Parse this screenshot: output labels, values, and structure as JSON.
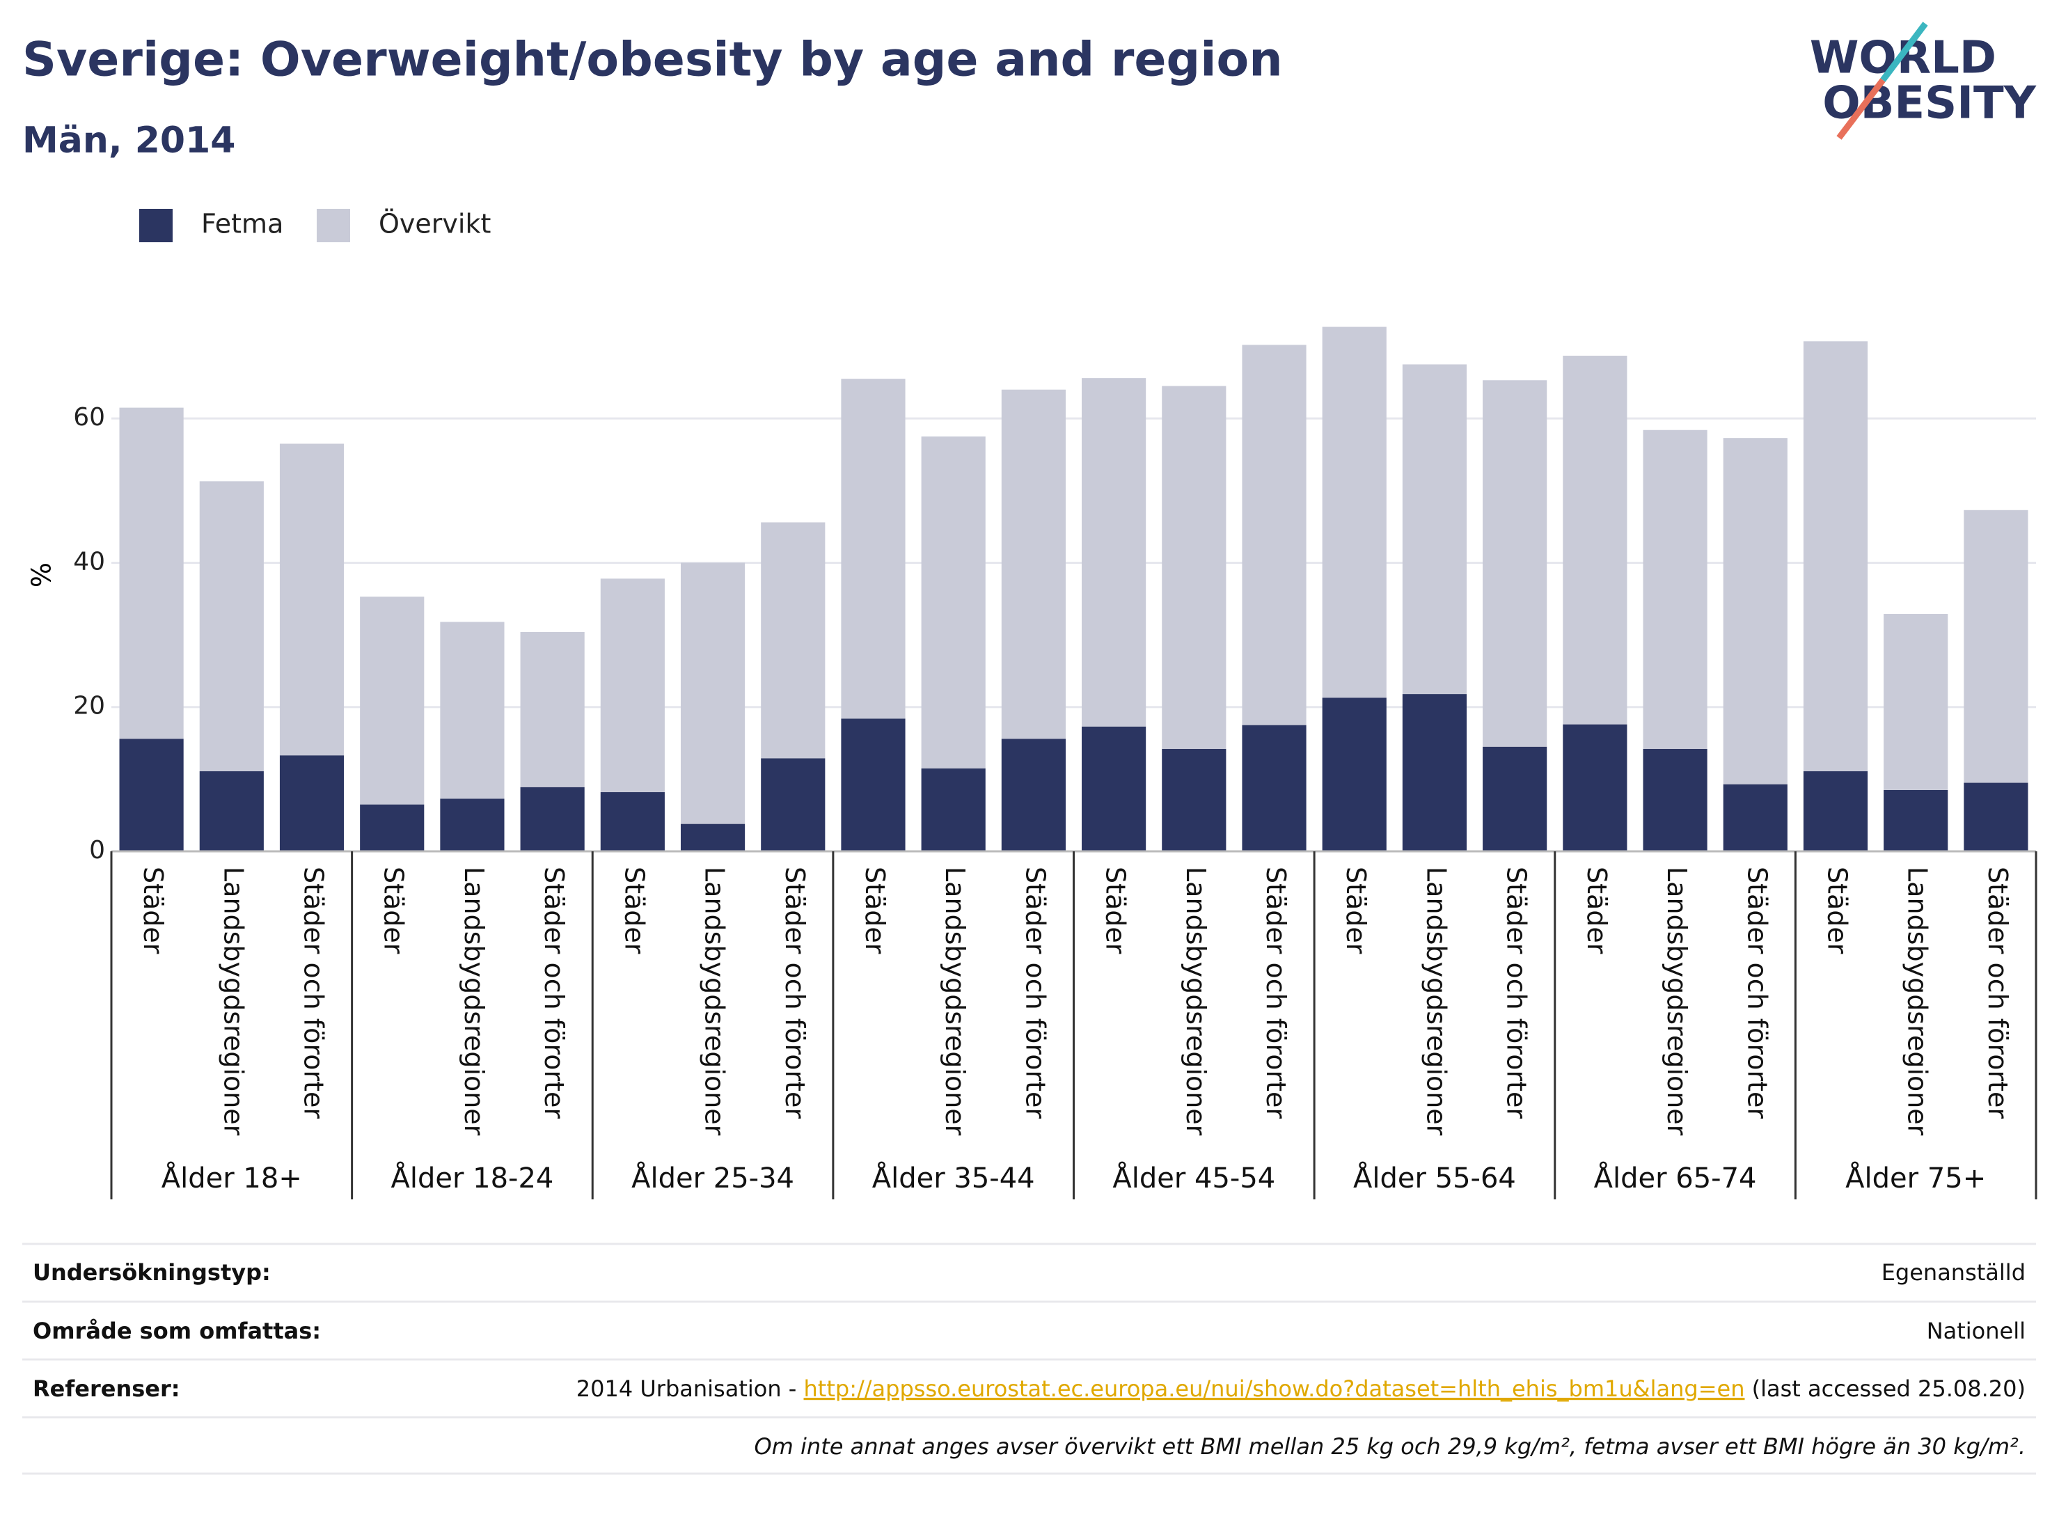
{
  "chart_data": {
    "type": "stacked_bar",
    "title": "Sverige: Overweight/obesity by age and region",
    "subtitle": "Män, 2014",
    "ylabel": "%",
    "logo": [
      "WORLD",
      "OBESITY"
    ],
    "groups": [
      "Ålder 18+",
      "Ålder 18-24",
      "Ålder 25-34",
      "Ålder 35-44",
      "Ålder 45-54",
      "Ålder 55-64",
      "Ålder 65-74",
      "Ålder 75+"
    ],
    "categories": [
      "Städer",
      "Landsbygdsregioner",
      "Städer och förorter",
      "Städer",
      "Landsbygdsregioner",
      "Städer och förorter",
      "Städer",
      "Landsbygdsregioner",
      "Städer och förorter",
      "Städer",
      "Landsbygdsregioner",
      "Städer och förorter",
      "Städer",
      "Landsbygdsregioner",
      "Städer och förorter",
      "Städer",
      "Landsbygdsregioner",
      "Städer och förorter",
      "Städer",
      "Landsbygdsregioner",
      "Städer och förorter",
      "Städer",
      "Landsbygdsregioner",
      "Städer och förorter"
    ],
    "series": [
      {
        "name": "Fetma",
        "color": "#2b3561",
        "values": [
          15.6,
          11.1,
          13.3,
          6.5,
          7.3,
          8.9,
          8.2,
          3.8,
          12.9,
          18.4,
          11.5,
          15.6,
          17.3,
          14.2,
          17.5,
          21.3,
          21.8,
          14.5,
          17.6,
          14.2,
          9.3,
          11.1,
          8.5,
          9.5
        ]
      },
      {
        "name": "Övervikt",
        "color": "#c9cbd8",
        "values": [
          45.9,
          40.2,
          43.2,
          28.8,
          24.5,
          21.5,
          29.6,
          36.2,
          32.7,
          47.1,
          46.0,
          48.4,
          48.3,
          50.3,
          52.7,
          51.4,
          45.7,
          50.8,
          51.1,
          44.2,
          48.0,
          59.6,
          24.4,
          37.8
        ]
      }
    ],
    "ylim": [
      0,
      77
    ],
    "yticks": [
      0,
      20,
      40,
      60
    ],
    "grid": true,
    "legend": "top-left"
  },
  "footer": {
    "rows": [
      {
        "label": "Undersökningstyp:",
        "value": "Egenanställd"
      },
      {
        "label": "Område som omfattas:",
        "value": "Nationell"
      }
    ],
    "reference": {
      "label": "Referenser:",
      "prefix": "2014 Urbanisation - ",
      "link": "http://appsso.eurostat.ec.europa.eu/nui/show.do?dataset=hlth_ehis_bm1u&lang=en",
      "suffix": " (last accessed 25.08.20)"
    },
    "note": "Om inte annat anges avser övervikt ett BMI mellan 25 kg och 29,9 kg/m², fetma avser ett BMI högre än 30 kg/m²."
  }
}
